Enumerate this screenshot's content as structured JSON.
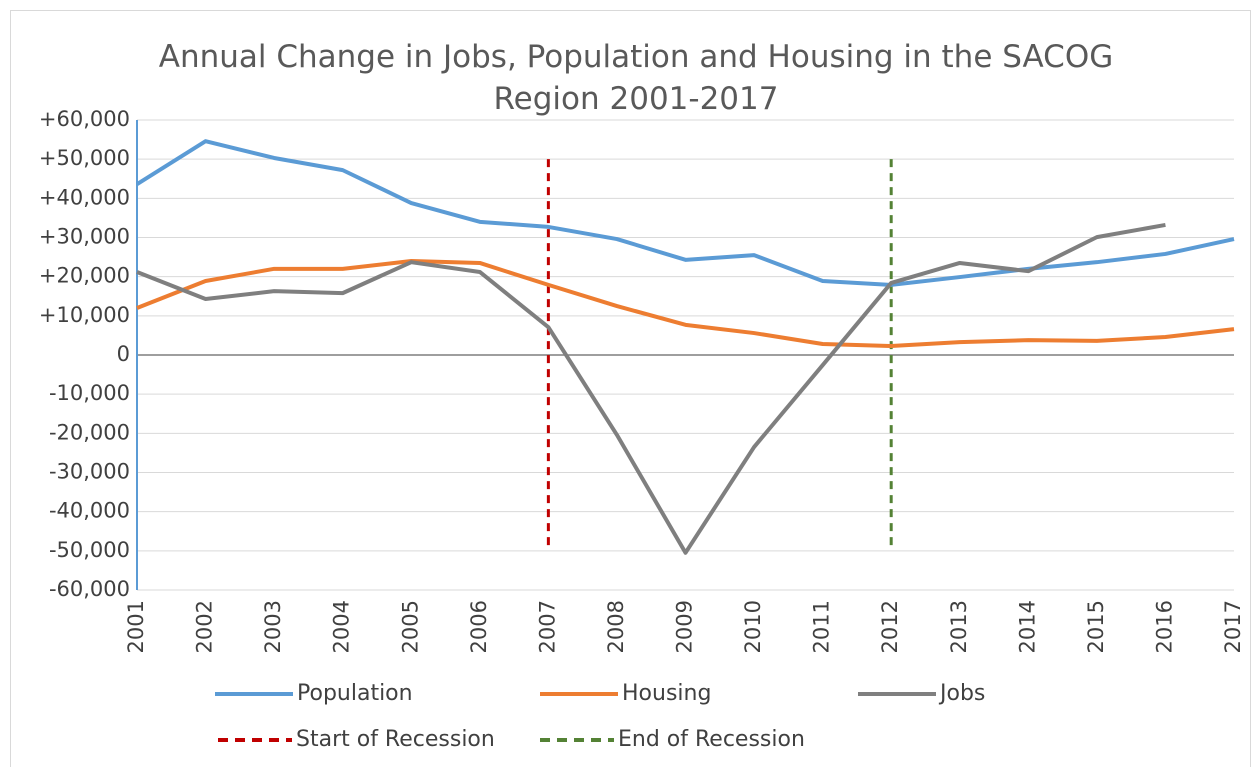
{
  "chart_data": {
    "type": "line",
    "title": "Annual Change in Jobs, Population and Housing in the SACOG Region 2001-2017",
    "categories": [
      "2001",
      "2002",
      "2003",
      "2004",
      "2005",
      "2006",
      "2007",
      "2008",
      "2009",
      "2010",
      "2011",
      "2012",
      "2013",
      "2014",
      "2015",
      "2016",
      "2017"
    ],
    "series": [
      {
        "name": "Population",
        "color": "#5b9bd5",
        "values": [
          43600,
          54600,
          50300,
          47200,
          38800,
          34000,
          32700,
          29600,
          24300,
          25500,
          18900,
          17900,
          19900,
          22000,
          23700,
          25800,
          29600
        ]
      },
      {
        "name": "Housing",
        "color": "#ed7d31",
        "values": [
          12000,
          18900,
          22000,
          22000,
          24000,
          23500,
          17900,
          12500,
          7700,
          5600,
          2800,
          2300,
          3300,
          3800,
          3600,
          4600,
          6600
        ]
      },
      {
        "name": "Jobs",
        "color": "#7f7f7f",
        "values": [
          21200,
          14300,
          16300,
          15800,
          23700,
          21200,
          7100,
          -20400,
          -50500,
          -23500,
          -2600,
          18400,
          23500,
          21400,
          30100,
          33200,
          null
        ]
      }
    ],
    "vlines": [
      {
        "name": "Start of Recession",
        "x": "2007",
        "color": "#c00000",
        "range": [
          -50000,
          50000
        ]
      },
      {
        "name": "End of Recession",
        "x": "2012",
        "color": "#548235",
        "range": [
          -50000,
          50000
        ]
      }
    ],
    "ylim": [
      -60000,
      60000
    ],
    "yticks": [
      {
        "value": -60000,
        "label": "-60,000"
      },
      {
        "value": -50000,
        "label": "-50,000"
      },
      {
        "value": -40000,
        "label": "-40,000"
      },
      {
        "value": -30000,
        "label": "-30,000"
      },
      {
        "value": -20000,
        "label": "-20,000"
      },
      {
        "value": -10000,
        "label": "-10,000"
      },
      0,
      {
        "value": 10000,
        "label": "+10,000"
      },
      {
        "value": 20000,
        "label": "+20,000"
      },
      {
        "value": 30000,
        "label": "+30,000"
      },
      {
        "value": 40000,
        "label": "+40,000"
      },
      {
        "value": 50000,
        "label": "+50,000"
      },
      {
        "value": 60000,
        "label": "+60,000"
      }
    ],
    "grid": true
  }
}
